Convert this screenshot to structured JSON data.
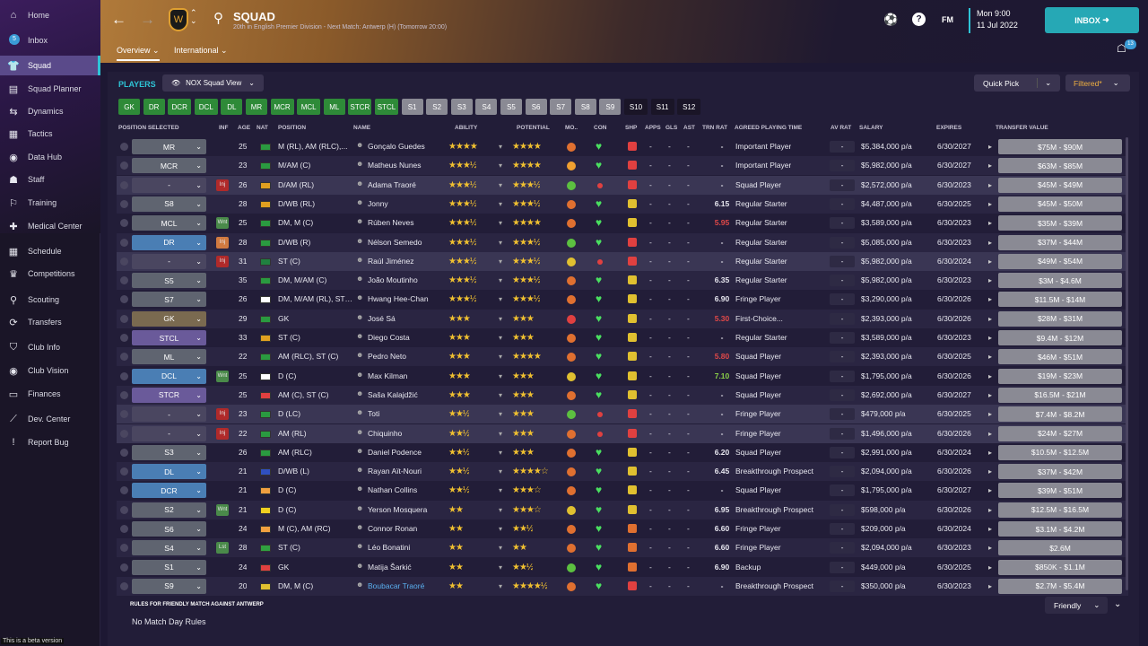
{
  "sidebar": {
    "items": [
      {
        "label": "Home",
        "icon": "home-icon",
        "glyph": "⌂"
      },
      {
        "label": "Inbox",
        "icon": "inbox-icon",
        "glyph": "✉",
        "badge": "5"
      },
      {
        "label": "Squad",
        "icon": "shirt-icon",
        "glyph": "👕",
        "active": true
      },
      {
        "label": "Squad Planner",
        "icon": "planner-icon",
        "glyph": "▤"
      },
      {
        "label": "Dynamics",
        "icon": "dynamics-icon",
        "glyph": "⇆"
      },
      {
        "label": "Tactics",
        "icon": "tactics-icon",
        "glyph": "▦"
      },
      {
        "label": "Data Hub",
        "icon": "data-hub-icon",
        "glyph": "◉"
      },
      {
        "label": "Staff",
        "icon": "staff-icon",
        "glyph": "☗"
      },
      {
        "label": "Training",
        "icon": "training-icon",
        "glyph": "⚐"
      },
      {
        "label": "Medical Center",
        "icon": "medical-icon",
        "glyph": "✚"
      },
      {
        "label": "Schedule",
        "icon": "schedule-icon",
        "glyph": "▦"
      },
      {
        "label": "Competitions",
        "icon": "trophy-icon",
        "glyph": "♛"
      },
      {
        "label": "Scouting",
        "icon": "scouting-icon",
        "glyph": "⚲"
      },
      {
        "label": "Transfers",
        "icon": "transfers-icon",
        "glyph": "⟳"
      },
      {
        "label": "Club Info",
        "icon": "shield-icon",
        "glyph": "⛉"
      },
      {
        "label": "Club Vision",
        "icon": "vision-icon",
        "glyph": "◉"
      },
      {
        "label": "Finances",
        "icon": "finances-icon",
        "glyph": "▭"
      },
      {
        "label": "Dev. Center",
        "icon": "dev-center-icon",
        "glyph": "⟋"
      },
      {
        "label": "Report Bug",
        "icon": "bug-icon",
        "glyph": "!"
      }
    ],
    "beta": "This is a beta version"
  },
  "header": {
    "title": "SQUAD",
    "subtitle": "20th in English Premier Division - Next Match: Antwerp (H) (Tomorrow 20:00)",
    "tabs": [
      "Overview",
      "International"
    ],
    "date_line1": "Mon 9:00",
    "date_line2": "11 Jul 2022",
    "fm": "FM",
    "inbox": "INBOX",
    "notif": "13"
  },
  "toolbar": {
    "players": "PLAYERS",
    "view": "NOX Squad View",
    "quickpick": "Quick Pick",
    "filtered": "Filtered*"
  },
  "positions": [
    "GK",
    "DR",
    "DCR",
    "DCL",
    "DL",
    "MR",
    "MCR",
    "MCL",
    "ML",
    "STCR",
    "STCL",
    "S1",
    "S2",
    "S3",
    "S4",
    "S5",
    "S6",
    "S7",
    "S8",
    "S9",
    "S10",
    "S11",
    "S12"
  ],
  "columns": [
    "POSITION SELECTED",
    "INF",
    "AGE",
    "NAT",
    "POSITION",
    "NAME",
    "ABILITY",
    "POTENTIAL",
    "MO..",
    "CON",
    "SHP",
    "APPS",
    "GLS",
    "AST",
    "TRN RAT",
    "AGREED PLAYING TIME",
    "AV RAT",
    "SALARY",
    "EXPIRES",
    "TRANSFER VALUE"
  ],
  "players": [
    {
      "sel": "MR",
      "selc": "#5f6470",
      "inf": "",
      "age": "25",
      "nat": "#2a9a40",
      "pos": "M (RL), AM (RLC),...",
      "name": "Gonçalo Guedes",
      "ab": "★★★★",
      "pot": "★★★★",
      "mo": "#e07030",
      "con": "heart",
      "shp": "#e04040",
      "trn": "-",
      "pt": "Important Player",
      "sal": "$5,384,000 p/a",
      "exp": "6/30/2027",
      "tv": "$75M - $90M"
    },
    {
      "sel": "MCR",
      "selc": "#5f6470",
      "inf": "",
      "age": "23",
      "nat": "#2a9a40",
      "pos": "M/AM (C)",
      "name": "Matheus Nunes",
      "ab": "★★★½",
      "pot": "★★★★",
      "mo": "#f0a030",
      "con": "heart",
      "shp": "#e04040",
      "trn": "-",
      "pt": "Important Player",
      "sal": "$5,982,000 p/a",
      "exp": "6/30/2027",
      "tv": "$63M - $85M"
    },
    {
      "sel": "-",
      "selc": "#4a4660",
      "inf": "Inj",
      "age": "26",
      "nat": "#e0a020",
      "pos": "D/AM (RL)",
      "name": "Adama Traoré",
      "ab": "★★★½",
      "pot": "★★★½",
      "mo": "#5cc040",
      "con": "red",
      "shp": "#e04040",
      "trn": "-",
      "pt": "Squad Player",
      "sal": "$2,572,000 p/a",
      "exp": "6/30/2023",
      "tv": "$45M - $49M",
      "inj": true
    },
    {
      "sel": "S8",
      "selc": "#5f6470",
      "inf": "",
      "age": "28",
      "nat": "#e0a020",
      "pos": "D/WB (RL)",
      "name": "Jonny",
      "ab": "★★★½",
      "pot": "★★★½",
      "mo": "#e07030",
      "con": "heart",
      "shp": "#e0c030",
      "trn": "6.15",
      "pt": "Regular Starter",
      "sal": "$4,487,000 p/a",
      "exp": "6/30/2025",
      "tv": "$45M - $50M"
    },
    {
      "sel": "MCL",
      "selc": "#5f6470",
      "inf": "Wnt",
      "age": "25",
      "nat": "#2a9a40",
      "pos": "DM, M (C)",
      "name": "Rúben Neves",
      "ab": "★★★½",
      "pot": "★★★★",
      "mo": "#e07030",
      "con": "heart",
      "shp": "#e0c030",
      "trn": "5.95",
      "trnc": "low",
      "pt": "Regular Starter",
      "sal": "$3,589,000 p/a",
      "exp": "6/30/2023",
      "tv": "$35M - $39M"
    },
    {
      "sel": "DR",
      "selc": "#4a7eb4",
      "inf": "Inj",
      "injc": "#d07a40",
      "age": "28",
      "nat": "#2a9a40",
      "pos": "D/WB (R)",
      "name": "Nélson Semedo",
      "ab": "★★★½",
      "pot": "★★★½",
      "mo": "#5cc040",
      "con": "heart",
      "shp": "#e04040",
      "trn": "-",
      "pt": "Regular Starter",
      "sal": "$5,085,000 p/a",
      "exp": "6/30/2023",
      "tv": "$37M - $44M"
    },
    {
      "sel": "-",
      "selc": "#4a4660",
      "inf": "Inj",
      "age": "31",
      "nat": "#208040",
      "pos": "ST (C)",
      "name": "Raúl Jiménez",
      "ab": "★★★½",
      "pot": "★★★½",
      "mo": "#e0c030",
      "con": "red",
      "shp": "#e04040",
      "trn": "-",
      "pt": "Regular Starter",
      "sal": "$5,982,000 p/a",
      "exp": "6/30/2024",
      "tv": "$49M - $54M",
      "inj": true
    },
    {
      "sel": "S5",
      "selc": "#5f6470",
      "inf": "",
      "age": "35",
      "nat": "#2a9a40",
      "pos": "DM, M/AM (C)",
      "name": "João Moutinho",
      "ab": "★★★½",
      "pot": "★★★½",
      "mo": "#e07030",
      "con": "heart",
      "shp": "#e0c030",
      "trn": "6.35",
      "pt": "Regular Starter",
      "sal": "$5,982,000 p/a",
      "exp": "6/30/2023",
      "tv": "$3M - $4.6M"
    },
    {
      "sel": "S7",
      "selc": "#5f6470",
      "inf": "",
      "age": "26",
      "nat": "#ffffff",
      "pos": "DM, M/AM (RL), ST (C)",
      "name": "Hwang Hee-Chan",
      "ab": "★★★½",
      "pot": "★★★½",
      "mo": "#e07030",
      "con": "heart",
      "shp": "#e0c030",
      "trn": "6.90",
      "pt": "Fringe Player",
      "sal": "$3,290,000 p/a",
      "exp": "6/30/2026",
      "tv": "$11.5M - $14M"
    },
    {
      "sel": "GK",
      "selc": "#7a6a50",
      "inf": "",
      "age": "29",
      "nat": "#2a9a40",
      "pos": "GK",
      "name": "José Sá",
      "ab": "★★★",
      "pot": "★★★",
      "mo": "#e04040",
      "con": "heart",
      "shp": "#e0c030",
      "trn": "5.30",
      "trnc": "low",
      "pt": "First-Choice...",
      "sal": "$2,393,000 p/a",
      "exp": "6/30/2026",
      "tv": "$28M - $31M"
    },
    {
      "sel": "STCL",
      "selc": "#6a5a9a",
      "inf": "",
      "age": "33",
      "nat": "#e0a020",
      "pos": "ST (C)",
      "name": "Diego Costa",
      "ab": "★★★",
      "pot": "★★★",
      "mo": "#e07030",
      "con": "heart",
      "shp": "#e0c030",
      "trn": "-",
      "pt": "Regular Starter",
      "sal": "$3,589,000 p/a",
      "exp": "6/30/2023",
      "tv": "$9.4M - $12M"
    },
    {
      "sel": "ML",
      "selc": "#5f6470",
      "inf": "",
      "age": "22",
      "nat": "#2a9a40",
      "pos": "AM (RLC), ST (C)",
      "name": "Pedro Neto",
      "ab": "★★★",
      "pot": "★★★★",
      "mo": "#e07030",
      "con": "heart",
      "shp": "#e0c030",
      "trn": "5.80",
      "trnc": "low",
      "pt": "Squad Player",
      "sal": "$2,393,000 p/a",
      "exp": "6/30/2025",
      "tv": "$46M - $51M"
    },
    {
      "sel": "DCL",
      "selc": "#4a7eb4",
      "inf": "Wnt",
      "age": "25",
      "nat": "#ffffff",
      "pos": "D (C)",
      "name": "Max Kilman",
      "ab": "★★★",
      "pot": "★★★",
      "mo": "#e0c030",
      "con": "heart",
      "shp": "#e0c030",
      "trn": "7.10",
      "trnc": "high",
      "pt": "Squad Player",
      "sal": "$1,795,000 p/a",
      "exp": "6/30/2026",
      "tv": "$19M - $23M"
    },
    {
      "sel": "STCR",
      "selc": "#6a5a9a",
      "inf": "",
      "age": "25",
      "nat": "#e04040",
      "pos": "AM (C), ST (C)",
      "name": "Saša Kalajdžić",
      "ab": "★★★",
      "pot": "★★★",
      "mo": "#e07030",
      "con": "heart",
      "shp": "#e0c030",
      "trn": "-",
      "pt": "Squad Player",
      "sal": "$2,692,000 p/a",
      "exp": "6/30/2027",
      "tv": "$16.5M - $21M"
    },
    {
      "sel": "-",
      "selc": "#4a4660",
      "inf": "Inj",
      "age": "23",
      "nat": "#2a9a40",
      "pos": "D (LC)",
      "name": "Toti",
      "ab": "★★½",
      "pot": "★★★",
      "mo": "#5cc040",
      "con": "red",
      "shp": "#e04040",
      "trn": "-",
      "pt": "Fringe Player",
      "sal": "$479,000 p/a",
      "exp": "6/30/2025",
      "tv": "$7.4M - $8.2M",
      "inj": true
    },
    {
      "sel": "-",
      "selc": "#4a4660",
      "inf": "Inj",
      "age": "22",
      "nat": "#2a9a40",
      "pos": "AM (RL)",
      "name": "Chiquinho",
      "ab": "★★½",
      "pot": "★★★",
      "mo": "#e07030",
      "con": "red",
      "shp": "#e04040",
      "trn": "-",
      "pt": "Fringe Player",
      "sal": "$1,496,000 p/a",
      "exp": "6/30/2026",
      "tv": "$24M - $27M",
      "inj": true
    },
    {
      "sel": "S3",
      "selc": "#5f6470",
      "inf": "",
      "age": "26",
      "nat": "#2a9a40",
      "pos": "AM (RLC)",
      "name": "Daniel Podence",
      "ab": "★★½",
      "pot": "★★★",
      "mo": "#e07030",
      "con": "heart",
      "shp": "#e0c030",
      "trn": "6.20",
      "pt": "Squad Player",
      "sal": "$2,991,000 p/a",
      "exp": "6/30/2024",
      "tv": "$10.5M - $12.5M"
    },
    {
      "sel": "DL",
      "selc": "#4a7eb4",
      "inf": "",
      "age": "21",
      "nat": "#3050c0",
      "pos": "D/WB (L)",
      "name": "Rayan Aït-Nouri",
      "ab": "★★½",
      "pot": "★★★★☆",
      "mo": "#e07030",
      "con": "heart",
      "shp": "#e0c030",
      "trn": "6.45",
      "pt": "Breakthrough Prospect",
      "sal": "$2,094,000 p/a",
      "exp": "6/30/2026",
      "tv": "$37M - $42M"
    },
    {
      "sel": "DCR",
      "selc": "#4a7eb4",
      "inf": "",
      "age": "21",
      "nat": "#f0a040",
      "pos": "D (C)",
      "name": "Nathan Collins",
      "ab": "★★½",
      "pot": "★★★☆",
      "mo": "#e07030",
      "con": "heart",
      "shp": "#e0c030",
      "trn": "-",
      "pt": "Squad Player",
      "sal": "$1,795,000 p/a",
      "exp": "6/30/2027",
      "tv": "$39M - $51M"
    },
    {
      "sel": "S2",
      "selc": "#5f6470",
      "inf": "Wnt",
      "age": "21",
      "nat": "#f0d020",
      "pos": "D (C)",
      "name": "Yerson Mosquera",
      "ab": "★★",
      "pot": "★★★☆",
      "mo": "#e0c030",
      "con": "heart",
      "shp": "#e0c030",
      "trn": "6.95",
      "pt": "Breakthrough Prospect",
      "sal": "$598,000 p/a",
      "exp": "6/30/2026",
      "tv": "$12.5M - $16.5M"
    },
    {
      "sel": "S6",
      "selc": "#5f6470",
      "inf": "",
      "age": "24",
      "nat": "#f0a040",
      "pos": "M (C), AM (RC)",
      "name": "Connor Ronan",
      "ab": "★★",
      "pot": "★★½",
      "mo": "#e07030",
      "con": "heart",
      "shp": "#e07030",
      "trn": "6.60",
      "pt": "Fringe Player",
      "sal": "$209,000 p/a",
      "exp": "6/30/2024",
      "tv": "$3.1M - $4.2M"
    },
    {
      "sel": "S4",
      "selc": "#5f6470",
      "inf": "Lst",
      "age": "28",
      "nat": "#30a040",
      "pos": "ST (C)",
      "name": "Léo Bonatini",
      "ab": "★★",
      "pot": "★★",
      "mo": "#e07030",
      "con": "heart",
      "shp": "#e07030",
      "trn": "6.60",
      "pt": "Fringe Player",
      "sal": "$2,094,000 p/a",
      "exp": "6/30/2023",
      "tv": "$2.6M"
    },
    {
      "sel": "S1",
      "selc": "#5f6470",
      "inf": "",
      "age": "24",
      "nat": "#e04040",
      "pos": "GK",
      "name": "Matija Šarkić",
      "ab": "★★",
      "pot": "★★½",
      "mo": "#5cc040",
      "con": "heart",
      "shp": "#e07030",
      "trn": "6.90",
      "pt": "Backup",
      "sal": "$449,000 p/a",
      "exp": "6/30/2025",
      "tv": "$850K - $1.1M"
    },
    {
      "sel": "S9",
      "selc": "#5f6470",
      "inf": "",
      "age": "20",
      "nat": "#e0c030",
      "pos": "DM, M (C)",
      "name": "Boubacar Traoré",
      "ab": "★★",
      "pot": "★★★★½",
      "mo": "#e07030",
      "con": "heart",
      "shp": "#e04040",
      "trn": "-",
      "pt": "Breakthrough Prospect",
      "sal": "$350,000 p/a",
      "exp": "6/30/2023",
      "tv": "$2.7M - $5.4M",
      "namec": "#5ab0f0"
    }
  ],
  "footer": {
    "rules_title": "RULES FOR FRIENDLY MATCH AGAINST ANTWERP",
    "rules_text": "No Match Day Rules",
    "friendly": "Friendly"
  },
  "colors": {
    "accent": "#2ec4d6",
    "inbox": "#26a8b5",
    "pos_green": "#2e8a38",
    "pos_gray": "#8a8a94",
    "filtered": "#f0b040"
  }
}
